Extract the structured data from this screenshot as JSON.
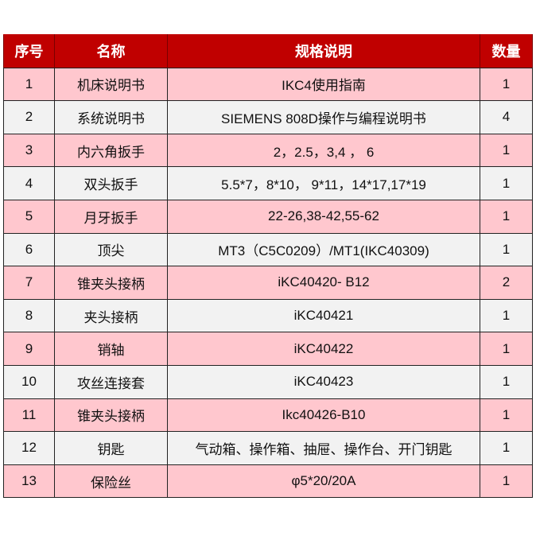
{
  "colors": {
    "header": "#c00000",
    "row_odd": "#ffc7ce",
    "row_even": "#f2f2f2"
  },
  "headers": [
    "序号",
    "名称",
    "规格说明",
    "数量"
  ],
  "rows": [
    {
      "no": "1",
      "name": "机床说明书",
      "spec": "IKC4使用指南",
      "qty": "1"
    },
    {
      "no": "2",
      "name": "系统说明书",
      "spec": "SIEMENS 808D操作与编程说明书",
      "qty": "4"
    },
    {
      "no": "3",
      "name": "内六角扳手",
      "spec": "2，2.5，3,4 ， 6",
      "qty": "1"
    },
    {
      "no": "4",
      "name": "双头扳手",
      "spec": "5.5*7，8*10， 9*11，14*17,17*19",
      "qty": "1"
    },
    {
      "no": "5",
      "name": "月牙扳手",
      "spec": "22-26,38-42,55-62",
      "qty": "1"
    },
    {
      "no": "6",
      "name": "顶尖",
      "spec": "MT3（C5C0209）/MT1(IKC40309)",
      "qty": "1"
    },
    {
      "no": "7",
      "name": "锥夹头接柄",
      "spec": "iKC40420- B12",
      "qty": "2"
    },
    {
      "no": "8",
      "name": "夹头接柄",
      "spec": "iKC40421",
      "qty": "1"
    },
    {
      "no": "9",
      "name": "销轴",
      "spec": "iKC40422",
      "qty": "1"
    },
    {
      "no": "10",
      "name": "攻丝连接套",
      "spec": "iKC40423",
      "qty": "1"
    },
    {
      "no": "11",
      "name": "锥夹头接柄",
      "spec": "Ikc40426-B10",
      "qty": "1"
    },
    {
      "no": "12",
      "name": "钥匙",
      "spec": "气动箱、操作箱、抽屉、操作台、开门钥匙",
      "qty": "1"
    },
    {
      "no": "13",
      "name": "保险丝",
      "spec": "φ5*20/20A",
      "qty": "1"
    }
  ]
}
